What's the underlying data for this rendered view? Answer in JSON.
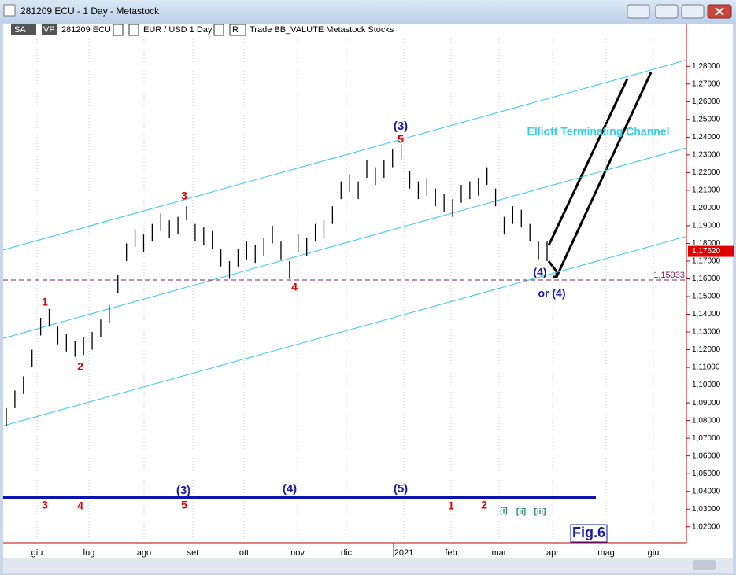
{
  "window": {
    "title": "281209 ECU - 1 Day - Metastock"
  },
  "toolbar": {
    "sa": "SA",
    "vp": "VP",
    "symbol": "281209 ECU",
    "pair": "EUR / USD  1 Day",
    "r": "R",
    "info": "Trade  BB_VALUTE  Metastock  Stocks"
  },
  "chart_data": {
    "type": "ohlc",
    "high": [
      1.087,
      1.097,
      1.105,
      1.12,
      1.138,
      1.143,
      1.133,
      1.129,
      1.125,
      1.127,
      1.13,
      1.137,
      1.145,
      1.162,
      1.18,
      1.188,
      1.185,
      1.191,
      1.197,
      1.193,
      1.195,
      1.201,
      1.191,
      1.189,
      1.187,
      1.177,
      1.17,
      1.177,
      1.181,
      1.179,
      1.183,
      1.19,
      1.181,
      1.17,
      1.185,
      1.183,
      1.191,
      1.193,
      1.201,
      1.215,
      1.219,
      1.215,
      1.227,
      1.223,
      1.227,
      1.233,
      1.236,
      1.221,
      1.215,
      1.217,
      1.211,
      1.208,
      1.205,
      1.213,
      1.215,
      1.217,
      1.223,
      1.211,
      1.195,
      1.201,
      1.199,
      1.191,
      1.181,
      1.181
    ],
    "low": [
      1.077,
      1.087,
      1.095,
      1.11,
      1.128,
      1.133,
      1.123,
      1.119,
      1.116,
      1.117,
      1.12,
      1.127,
      1.135,
      1.152,
      1.17,
      1.178,
      1.175,
      1.181,
      1.187,
      1.183,
      1.185,
      1.193,
      1.181,
      1.179,
      1.177,
      1.167,
      1.16,
      1.167,
      1.171,
      1.169,
      1.173,
      1.18,
      1.171,
      1.16,
      1.175,
      1.173,
      1.181,
      1.183,
      1.191,
      1.205,
      1.209,
      1.205,
      1.217,
      1.213,
      1.217,
      1.223,
      1.227,
      1.211,
      1.205,
      1.207,
      1.201,
      1.198,
      1.195,
      1.203,
      1.205,
      1.207,
      1.213,
      1.201,
      1.185,
      1.191,
      1.189,
      1.181,
      1.171,
      1.17
    ],
    "channel": [
      [
        1.1763,
        1.2835
      ],
      [
        1.1264,
        1.234
      ],
      [
        1.077,
        1.184
      ]
    ],
    "support": 1.15933,
    "support_label": "1,15933",
    "last_label": "1,17620",
    "months": [
      "giu",
      "lug",
      "ago",
      "set",
      "ott",
      "nov",
      "dic",
      "2021",
      "feb",
      "mar",
      "apr",
      "mag",
      "giu"
    ],
    "ylim": [
      1.011,
      1.297
    ],
    "yticks": [
      {
        "value": 1.28,
        "label": "1,28000"
      },
      {
        "value": 1.27,
        "label": "1,27000"
      },
      {
        "value": 1.26,
        "label": "1,26000"
      },
      {
        "value": 1.25,
        "label": "1,25000"
      },
      {
        "value": 1.24,
        "label": "1,24000"
      },
      {
        "value": 1.23,
        "label": "1,23000"
      },
      {
        "value": 1.22,
        "label": "1,22000"
      },
      {
        "value": 1.21,
        "label": "1,21000"
      },
      {
        "value": 1.2,
        "label": "1,20000"
      },
      {
        "value": 1.19,
        "label": "1,19000"
      },
      {
        "value": 1.18,
        "label": "1,18000"
      },
      {
        "value": 1.17,
        "label": "1,17000"
      },
      {
        "value": 1.16,
        "label": "1,16000"
      },
      {
        "value": 1.15,
        "label": "1,15000"
      },
      {
        "value": 1.14,
        "label": "1,14000"
      },
      {
        "value": 1.13,
        "label": "1,13000"
      },
      {
        "value": 1.12,
        "label": "1,12000"
      },
      {
        "value": 1.11,
        "label": "1,11000"
      },
      {
        "value": 1.1,
        "label": "1,10000"
      },
      {
        "value": 1.09,
        "label": "1,09000"
      },
      {
        "value": 1.08,
        "label": "1,08000"
      },
      {
        "value": 1.07,
        "label": "1,07000"
      },
      {
        "value": 1.06,
        "label": "1,06000"
      },
      {
        "value": 1.05,
        "label": "1,05000"
      },
      {
        "value": 1.04,
        "label": "1,04000"
      },
      {
        "value": 1.03,
        "label": "1,03000"
      },
      {
        "value": 1.02,
        "label": "1,02000"
      }
    ],
    "annotations": [
      "1",
      "2",
      "3",
      "4",
      "5",
      "(3)",
      "(4)",
      "or (4)",
      "Elliott Terminating Channel",
      "3",
      "4",
      "5",
      "(3)",
      "(4)",
      "(5)",
      "1",
      "2",
      "[i]",
      "[ii]",
      "[iii]",
      "Fig.6"
    ]
  }
}
